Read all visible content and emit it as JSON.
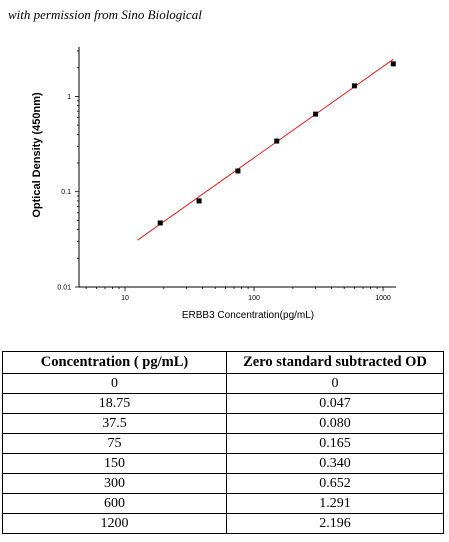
{
  "watermark": "with permission from Sino Biological",
  "chart_data": {
    "type": "scatter",
    "xscale": "log",
    "yscale": "log",
    "xlabel": "ERBB3  Concentration(pg/mL)",
    "ylabel": "Optical Density (450nm)",
    "xticks": [
      "10",
      "100",
      "1000"
    ],
    "yticks": [
      "0.01",
      "0.1",
      "1"
    ],
    "xlim": [
      4.4,
      1260
    ],
    "ylim": [
      0.01,
      3.3
    ],
    "points": [
      {
        "x": 18.75,
        "y": 0.047
      },
      {
        "x": 37.5,
        "y": 0.08
      },
      {
        "x": 75,
        "y": 0.165
      },
      {
        "x": 150,
        "y": 0.34
      },
      {
        "x": 300,
        "y": 0.652
      },
      {
        "x": 600,
        "y": 1.291
      },
      {
        "x": 1200,
        "y": 2.196
      }
    ],
    "fit_line": {
      "x": [
        12.5,
        1200
      ],
      "y": [
        0.031,
        2.45
      ],
      "color": "#e02020"
    },
    "marker_color": "#000000"
  },
  "table": {
    "headers": [
      "Concentration ( pg/mL)",
      "Zero standard subtracted OD"
    ],
    "rows": [
      [
        "0",
        "0"
      ],
      [
        "18.75",
        "0.047"
      ],
      [
        "37.5",
        "0.080"
      ],
      [
        "75",
        "0.165"
      ],
      [
        "150",
        "0.340"
      ],
      [
        "300",
        "0.652"
      ],
      [
        "600",
        "1.291"
      ],
      [
        "1200",
        "2.196"
      ]
    ]
  }
}
